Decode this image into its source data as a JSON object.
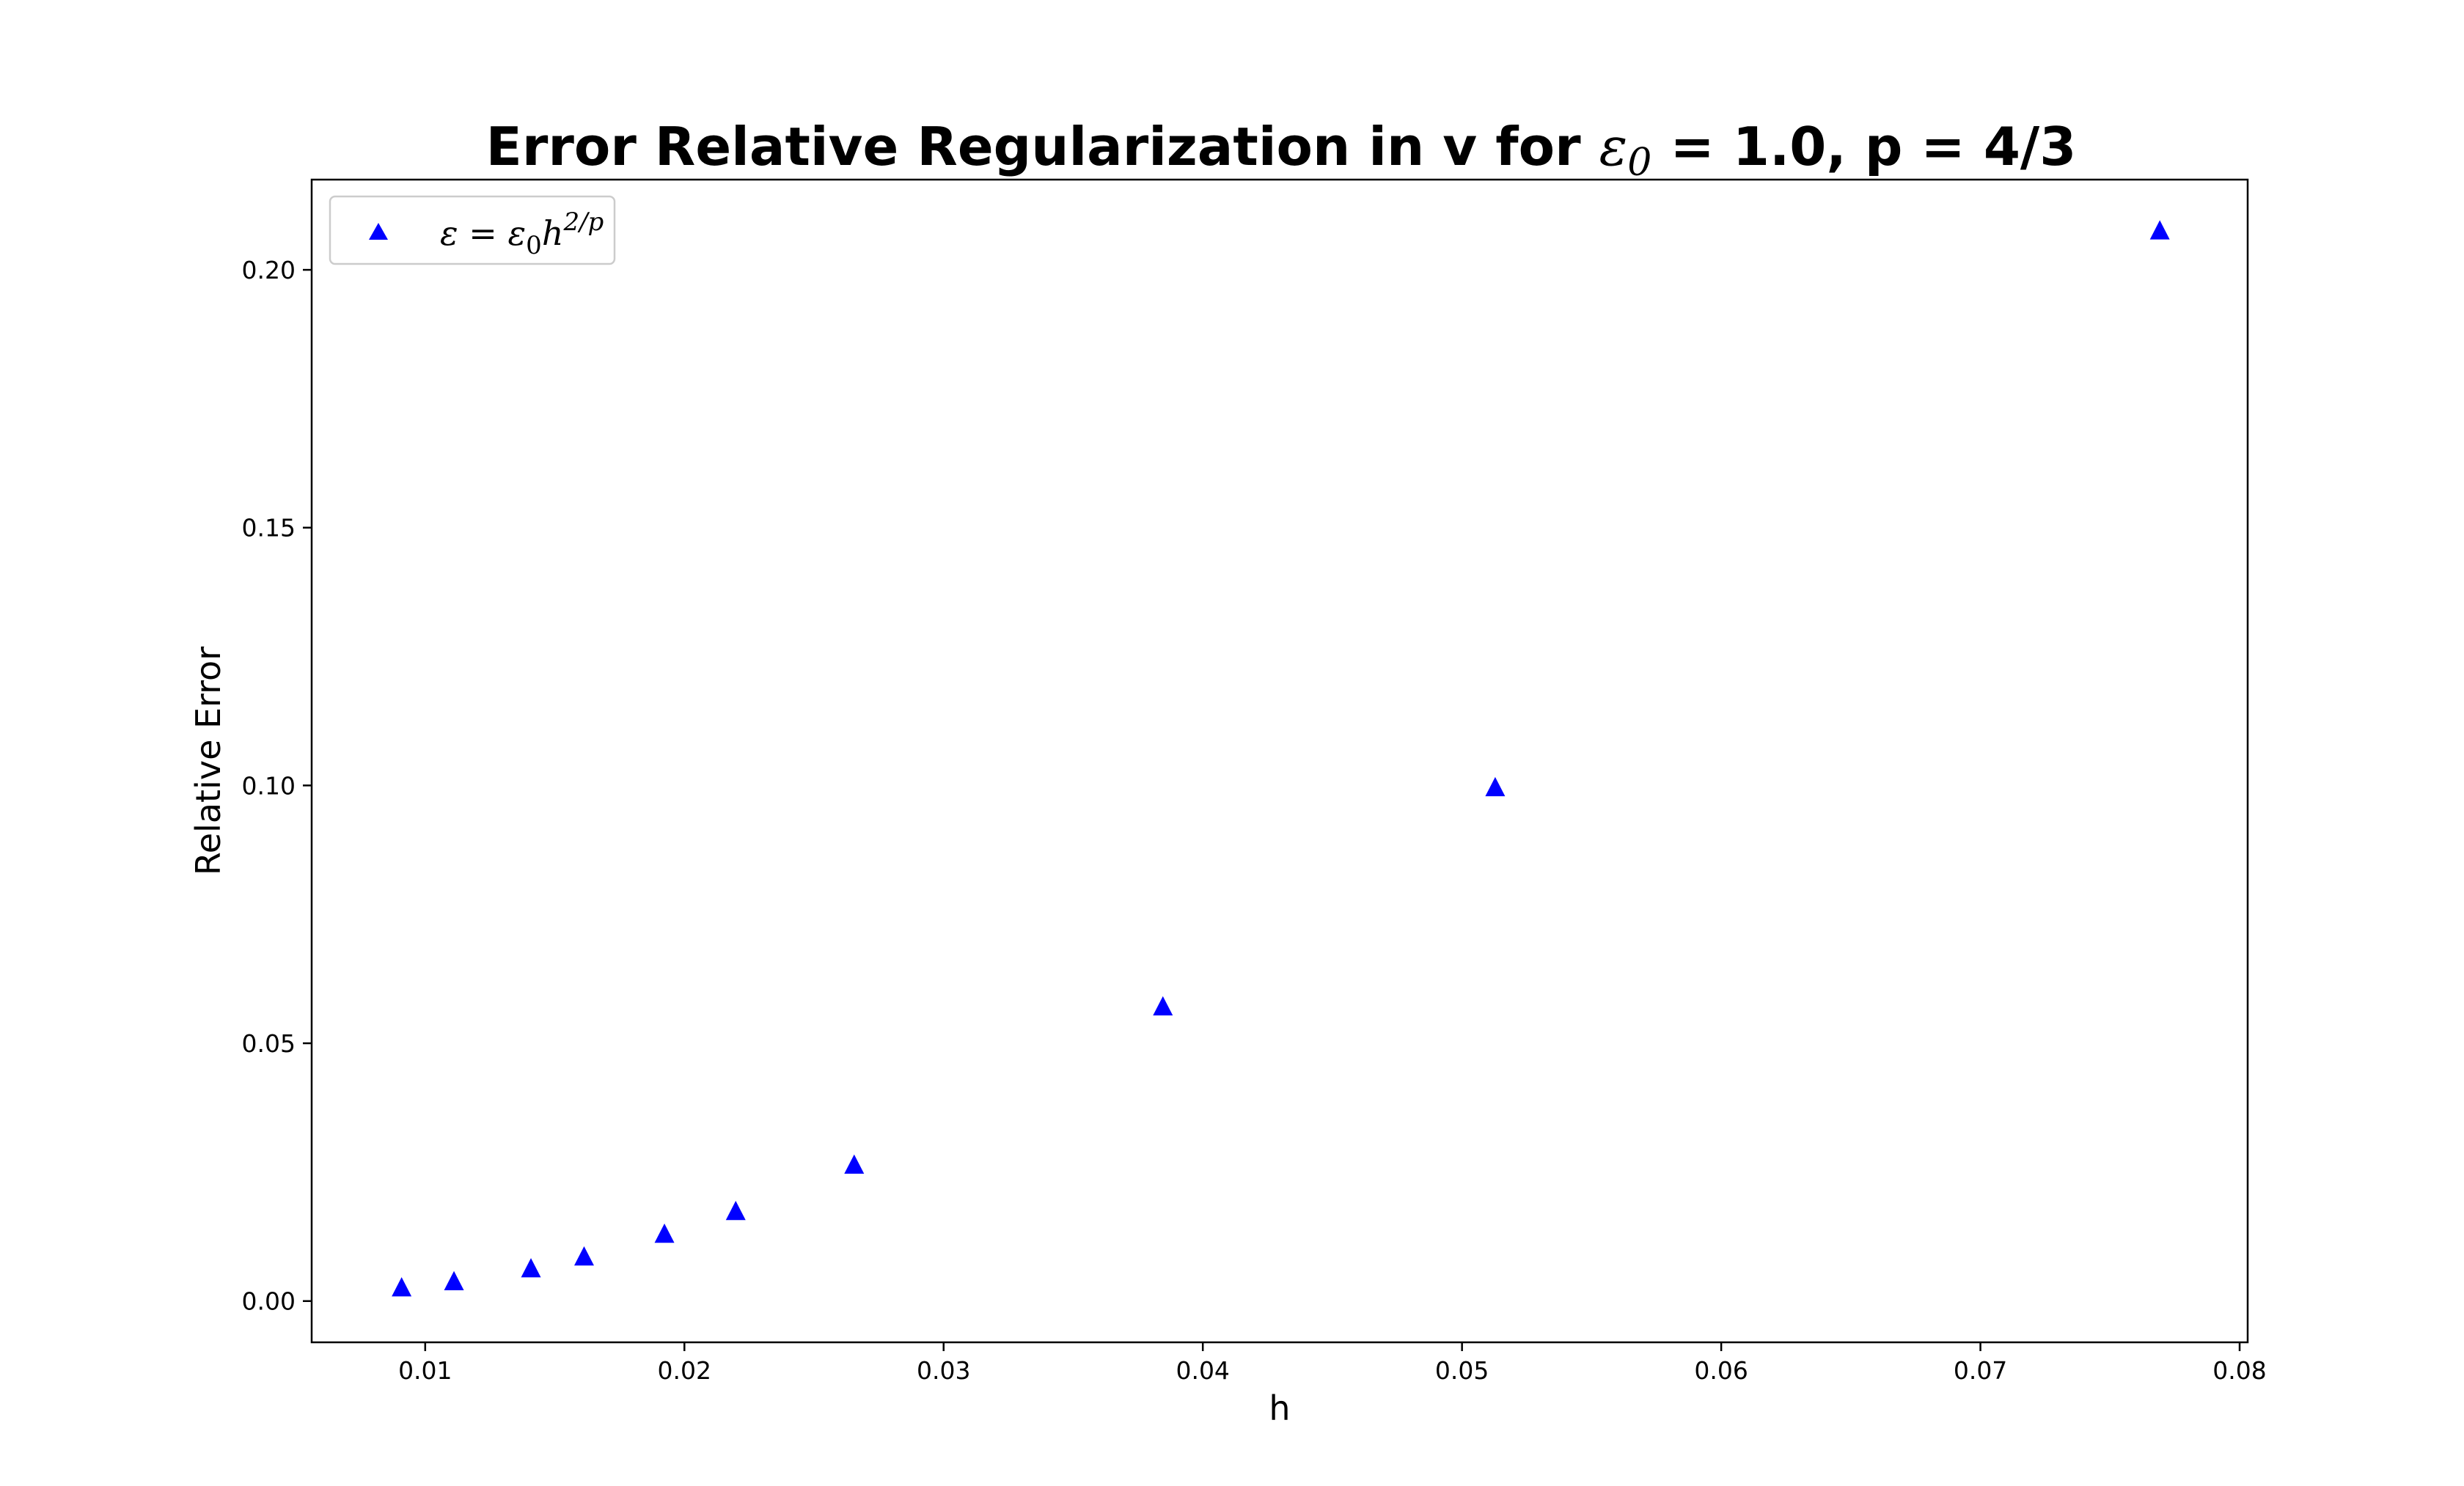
{
  "chart_data": {
    "type": "scatter",
    "title": {
      "prefix": "Error Relative Regularization in v for ",
      "symbol": "ε",
      "subscript": "0",
      "eq": " = ",
      "suffix": "1.0, p = 4/3"
    },
    "xlabel": "h",
    "ylabel": "Relative Error",
    "xlim": [
      0.00562,
      0.08031
    ],
    "ylim": [
      -0.008,
      0.2175
    ],
    "xticks": [
      {
        "value": 0.01,
        "label": "0.01"
      },
      {
        "value": 0.02,
        "label": "0.02"
      },
      {
        "value": 0.03,
        "label": "0.03"
      },
      {
        "value": 0.04,
        "label": "0.04"
      },
      {
        "value": 0.05,
        "label": "0.05"
      },
      {
        "value": 0.06,
        "label": "0.06"
      },
      {
        "value": 0.07,
        "label": "0.07"
      },
      {
        "value": 0.08,
        "label": "0.08"
      }
    ],
    "yticks": [
      {
        "value": 0.0,
        "label": "0.00"
      },
      {
        "value": 0.05,
        "label": "0.05"
      },
      {
        "value": 0.1,
        "label": "0.10"
      },
      {
        "value": 0.15,
        "label": "0.15"
      },
      {
        "value": 0.2,
        "label": "0.20"
      }
    ],
    "grid": false,
    "legend_position": "top-left",
    "series": [
      {
        "name": {
          "lhs": "ε",
          "eq": " = ",
          "rhs": "ε",
          "rhs_sub": "0",
          "var": "h",
          "exp": "2/p"
        },
        "marker": "triangle-up",
        "color": "#0000ff",
        "x": [
          0.00909,
          0.01111,
          0.01408,
          0.01613,
          0.01923,
          0.02198,
          0.02655,
          0.03846,
          0.05128,
          0.07692
        ],
        "y": [
          0.0025,
          0.0037,
          0.0062,
          0.0085,
          0.0129,
          0.0173,
          0.0263,
          0.057,
          0.0995,
          0.2075
        ]
      }
    ]
  }
}
